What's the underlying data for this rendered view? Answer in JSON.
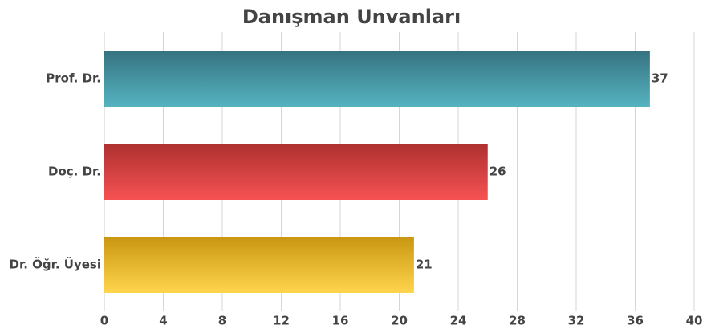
{
  "chart_data": {
    "type": "barh",
    "title": "Danışman Unvanları",
    "categories": [
      "Prof. Dr.",
      "Doç. Dr.",
      "Dr. Öğr. Üyesi"
    ],
    "values": [
      37,
      26,
      21
    ],
    "colors": [
      [
        "#367280",
        "#55b3c0"
      ],
      [
        "#ad3030",
        "#f75252"
      ],
      [
        "#c99611",
        "#ffd54d"
      ]
    ],
    "xlim": [
      0,
      40
    ],
    "xticks": [
      0,
      4,
      8,
      12,
      16,
      20,
      24,
      28,
      32,
      36,
      40
    ],
    "grid": true
  }
}
